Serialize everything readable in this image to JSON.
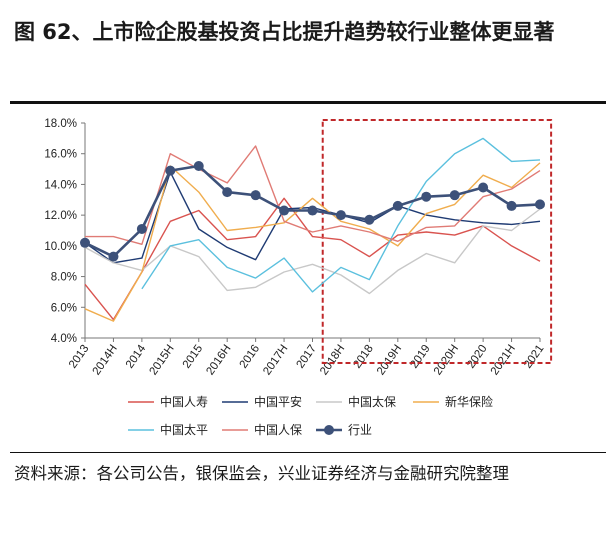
{
  "header": {
    "title": "图 62、上市险企股基投资占比提升趋势较行业整体更显著"
  },
  "footer": {
    "source": "资料来源：各公司公告，银保监会，兴业证券经济与金融研究院整理"
  },
  "chart_data": {
    "type": "line",
    "title": "图 62、上市险企股基投资占比提升趋势较行业整体更显著",
    "xlabel": "",
    "ylabel": "",
    "categories": [
      "2013",
      "2014H",
      "2014",
      "2015H",
      "2015",
      "2016H",
      "2016",
      "2017H",
      "2017",
      "2018H",
      "2018",
      "2019H",
      "2019",
      "2020H",
      "2020",
      "2021H",
      "2021"
    ],
    "y_tick_labels": [
      "4.0%",
      "6.0%",
      "8.0%",
      "10.0%",
      "12.0%",
      "14.0%",
      "16.0%",
      "18.0%"
    ],
    "ylim": [
      4.0,
      18.0
    ],
    "y_unit": "%",
    "grid": false,
    "legend_position": "bottom",
    "highlight_region": {
      "from": "2018H",
      "to": "2021",
      "style": "dashed",
      "color": "#c0282a"
    },
    "series": [
      {
        "name": "中国人寿",
        "color": "#d9534f",
        "marker": false,
        "values": [
          7.5,
          5.2,
          8.3,
          11.6,
          12.3,
          10.4,
          10.6,
          13.1,
          10.6,
          10.4,
          9.3,
          10.7,
          10.9,
          10.7,
          11.3,
          10.0,
          9.0
        ]
      },
      {
        "name": "中国平安",
        "color": "#1f3b73",
        "marker": false,
        "values": [
          10.2,
          8.9,
          9.2,
          14.8,
          11.1,
          9.9,
          9.1,
          12.4,
          12.5,
          12.0,
          11.5,
          12.6,
          12.0,
          11.7,
          11.5,
          11.4,
          11.6
        ]
      },
      {
        "name": "中国太保",
        "color": "#c8c8c8",
        "marker": false,
        "values": [
          9.9,
          8.9,
          8.4,
          10.0,
          9.3,
          7.1,
          7.3,
          8.3,
          8.8,
          8.1,
          6.9,
          8.4,
          9.5,
          8.9,
          11.3,
          11.0,
          12.4
        ]
      },
      {
        "name": "新华保险",
        "color": "#f0ad4e",
        "marker": false,
        "values": [
          5.9,
          5.1,
          8.3,
          15.2,
          13.5,
          11.0,
          11.2,
          11.5,
          13.1,
          11.6,
          11.1,
          10.0,
          12.1,
          12.7,
          14.6,
          13.8,
          15.4
        ]
      },
      {
        "name": "中国太平",
        "color": "#5bc0de",
        "marker": false,
        "values": [
          null,
          null,
          7.2,
          10.0,
          10.4,
          8.6,
          7.9,
          9.2,
          7.0,
          8.6,
          7.8,
          11.3,
          14.2,
          16.0,
          17.0,
          15.5,
          15.6
        ]
      },
      {
        "name": "中国人保",
        "color": "#e07b75",
        "marker": false,
        "values": [
          10.6,
          10.6,
          10.1,
          16.0,
          15.0,
          14.1,
          16.5,
          11.6,
          10.9,
          11.3,
          10.9,
          10.3,
          11.2,
          11.3,
          13.2,
          13.7,
          14.9
        ]
      },
      {
        "name": "行业",
        "color": "#3d5179",
        "marker": true,
        "values": [
          10.2,
          9.3,
          11.1,
          14.9,
          15.2,
          13.5,
          13.3,
          12.3,
          12.3,
          12.0,
          11.7,
          12.6,
          13.2,
          13.3,
          13.8,
          12.6,
          12.7
        ]
      }
    ]
  }
}
